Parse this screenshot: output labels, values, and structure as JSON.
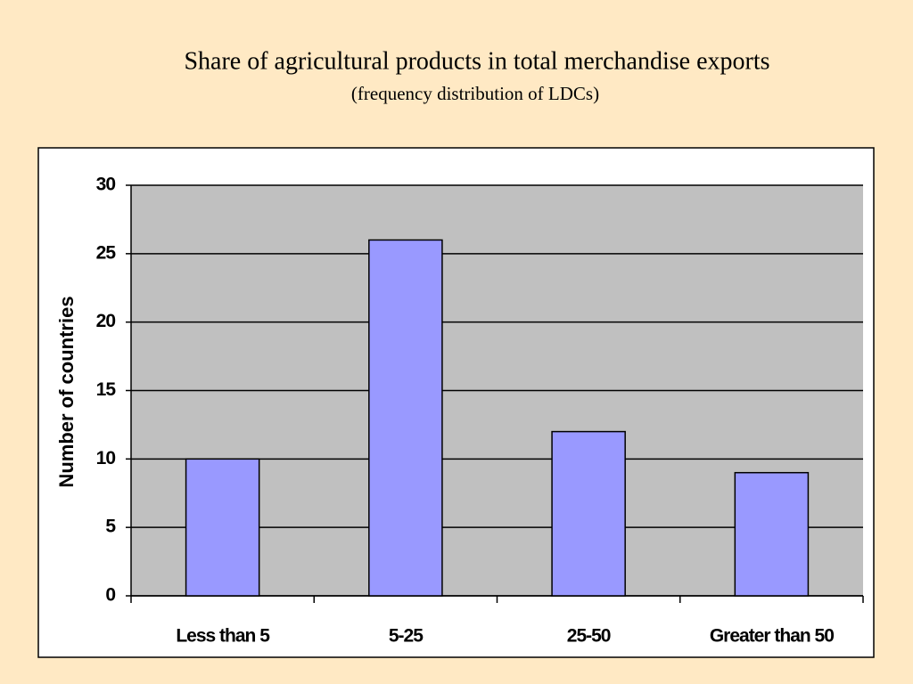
{
  "chart_data": {
    "type": "bar",
    "title": "Share of agricultural products in total merchandise exports",
    "subtitle": "(frequency distribution of LDCs)",
    "y_label": "Number of countries",
    "categories": [
      "Less than 5",
      "5-25",
      "25-50",
      "Greater than 50"
    ],
    "values": [
      10,
      26,
      12,
      9
    ],
    "color": "#9999ff",
    "ylim": [
      0,
      30
    ],
    "yticks": [
      0,
      5,
      10,
      15,
      20,
      25,
      30
    ],
    "grid": true
  }
}
